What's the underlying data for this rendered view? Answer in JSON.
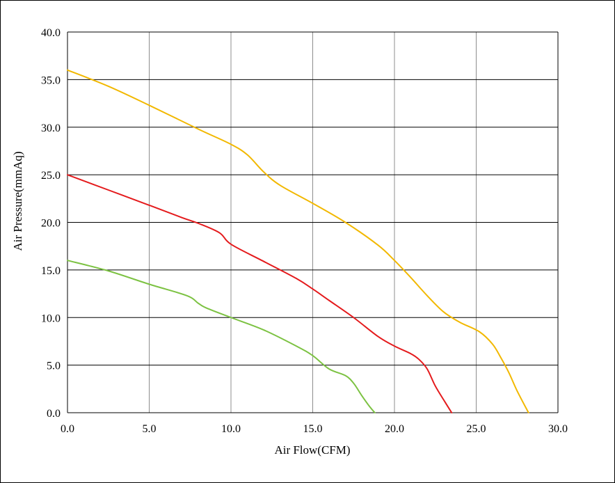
{
  "chart_data": {
    "type": "line",
    "title": "",
    "xlabel": "Air Flow(CFM)",
    "ylabel": "Air Pressure(mmAq)",
    "xlim": [
      0,
      30
    ],
    "ylim": [
      0,
      40
    ],
    "x_ticks": [
      "0.0",
      "5.0",
      "10.0",
      "15.0",
      "20.0",
      "25.0",
      "30.0"
    ],
    "y_ticks": [
      "0.0",
      "5.0",
      "10.0",
      "15.0",
      "20.0",
      "25.0",
      "30.0",
      "35.0",
      "40.0"
    ],
    "grid": true,
    "legend": "none",
    "series": [
      {
        "color": "#f2b800",
        "points": [
          [
            0,
            36
          ],
          [
            2.5,
            34.3
          ],
          [
            5,
            32.3
          ],
          [
            8,
            29.8
          ],
          [
            10,
            28.2
          ],
          [
            11,
            27.1
          ],
          [
            12,
            25.3
          ],
          [
            13,
            23.9
          ],
          [
            15,
            22
          ],
          [
            17,
            20
          ],
          [
            19,
            17.6
          ],
          [
            20,
            16
          ],
          [
            21,
            14.2
          ],
          [
            22,
            12.3
          ],
          [
            23,
            10.6
          ],
          [
            24,
            9.5
          ],
          [
            25.2,
            8.5
          ],
          [
            26,
            7.2
          ],
          [
            26.5,
            5.8
          ],
          [
            27,
            4.2
          ],
          [
            27.5,
            2.3
          ],
          [
            28.2,
            0
          ]
        ]
      },
      {
        "color": "#e41a1c",
        "points": [
          [
            0,
            25
          ],
          [
            2.5,
            23.4
          ],
          [
            5,
            21.8
          ],
          [
            7,
            20.5
          ],
          [
            8,
            19.9
          ],
          [
            9.3,
            18.9
          ],
          [
            10,
            17.7
          ],
          [
            12,
            15.9
          ],
          [
            14,
            14.1
          ],
          [
            15,
            13
          ],
          [
            16,
            11.8
          ],
          [
            17.5,
            10
          ],
          [
            19,
            8
          ],
          [
            20,
            7
          ],
          [
            21,
            6.2
          ],
          [
            21.5,
            5.6
          ],
          [
            22,
            4.6
          ],
          [
            22.5,
            2.8
          ],
          [
            23.1,
            1.1
          ],
          [
            23.5,
            0
          ]
        ]
      },
      {
        "color": "#7cc242",
        "points": [
          [
            0,
            16
          ],
          [
            2.5,
            14.9
          ],
          [
            5,
            13.5
          ],
          [
            7.3,
            12.3
          ],
          [
            8,
            11.5
          ],
          [
            8.5,
            11
          ],
          [
            10,
            10
          ],
          [
            12,
            8.7
          ],
          [
            14,
            7
          ],
          [
            15,
            6
          ],
          [
            16,
            4.6
          ],
          [
            17,
            3.9
          ],
          [
            17.5,
            3.1
          ],
          [
            18,
            1.8
          ],
          [
            18.5,
            0.6
          ],
          [
            18.8,
            0
          ]
        ]
      }
    ]
  }
}
